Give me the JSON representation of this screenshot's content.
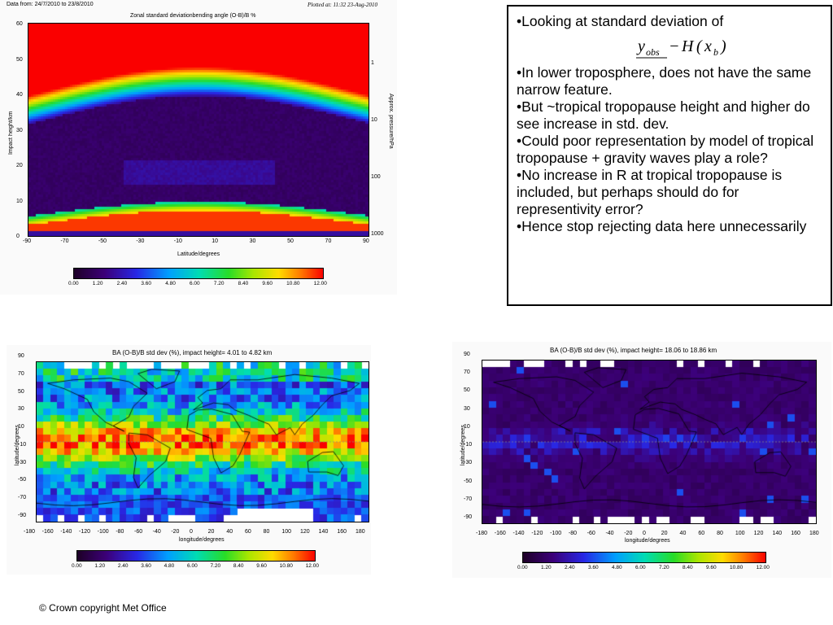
{
  "top_left": {
    "data_from": "Data from: 24/7/2010 to 23/8/2010",
    "plotted_at": "Plotted at: 11:32 23-Aug-2010",
    "title": "Zonal standard deviationbending angle (O-B)/B %",
    "xlabel": "Latitude/degrees",
    "ylabel": "Impact height/km",
    "ylabel_right": "Approx. pressure/hPa",
    "x_ticks": [
      "-90",
      "-70",
      "-50",
      "-30",
      "-10",
      "10",
      "30",
      "50",
      "70",
      "90"
    ],
    "y_ticks": [
      "60",
      "50",
      "40",
      "30",
      "20",
      "10",
      "0"
    ],
    "p_ticks": [
      "1",
      "10",
      "100",
      "1000"
    ],
    "colorbar_ticks": [
      "0.00",
      "1.20",
      "2.40",
      "3.60",
      "4.80",
      "6.00",
      "7.20",
      "8.40",
      "9.60",
      "10.80",
      "12.00"
    ]
  },
  "text_panel": {
    "bullet1": "•Looking at standard deviation of",
    "formula": "y_obs − H(x_b)",
    "bullets": [
      "•In lower troposphere, does not have the same narrow feature.",
      "•But ~tropical tropopause height and higher do see increase in std. dev.",
      "•Could poor representation by model of tropical tropopause + gravity waves play a role?",
      "•No increase in R at tropical tropopause is included, but perhaps should do for representivity error?",
      "•Hence stop rejecting data here unnecessarily"
    ]
  },
  "map_left": {
    "title": "BA (O-B)/B std dev (%), impact height=  4.01 to  4.82 km",
    "xlabel": "longitude/degrees",
    "ylabel": "latitude/degrees",
    "x_ticks": [
      "-180",
      "-160",
      "-140",
      "-120",
      "-100",
      "-80",
      "-60",
      "-40",
      "-20",
      "0",
      "20",
      "40",
      "60",
      "80",
      "100",
      "120",
      "140",
      "160",
      "180"
    ],
    "y_ticks": [
      "90",
      "70",
      "50",
      "30",
      "10",
      "-10",
      "-30",
      "-50",
      "-70",
      "-90"
    ],
    "colorbar_ticks": [
      "0.00",
      "1.20",
      "2.40",
      "3.60",
      "4.80",
      "6.00",
      "7.20",
      "8.40",
      "9.60",
      "10.80",
      "12.00"
    ]
  },
  "map_right": {
    "title": "BA (O-B)/B std dev (%), impact height= 18.06 to 18.86 km",
    "xlabel": "longitude/degrees",
    "ylabel": "latitude/degrees",
    "x_ticks": [
      "-180",
      "-160",
      "-140",
      "-120",
      "-100",
      "-80",
      "-60",
      "-40",
      "-20",
      "0",
      "20",
      "40",
      "60",
      "80",
      "100",
      "120",
      "140",
      "160",
      "180"
    ],
    "y_ticks": [
      "90",
      "70",
      "50",
      "30",
      "10",
      "-10",
      "-30",
      "-50",
      "-70",
      "-90"
    ],
    "colorbar_ticks": [
      "0.00",
      "1.20",
      "2.40",
      "3.60",
      "4.80",
      "6.00",
      "7.20",
      "8.40",
      "9.60",
      "10.80",
      "12.00"
    ]
  },
  "footer": "© Crown copyright   Met Office"
}
